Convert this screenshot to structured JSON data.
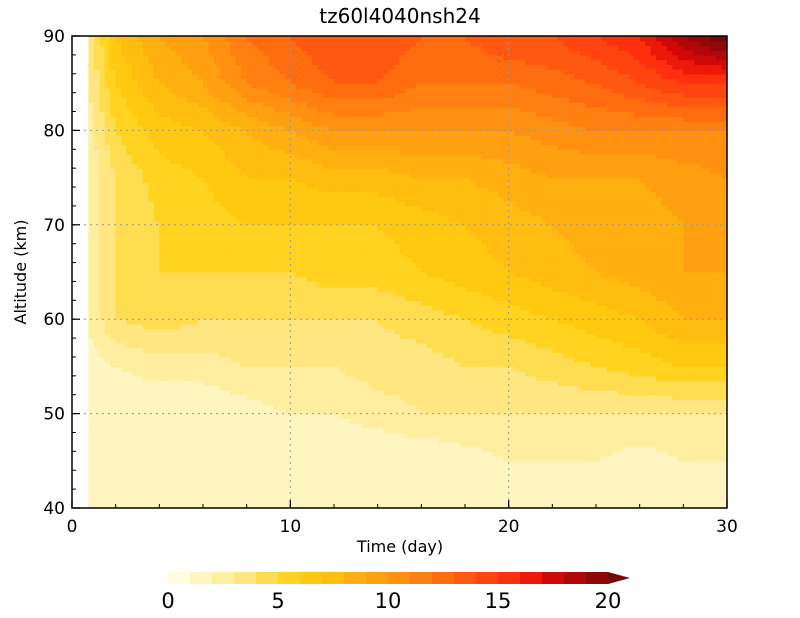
{
  "chart_data": {
    "type": "heatmap",
    "title": "tz60l4040nsh24",
    "xlabel": "Time (day)",
    "ylabel": "Altitude (km)",
    "xlim": [
      0,
      30
    ],
    "ylim": [
      40,
      90
    ],
    "x_ticks": [
      "0",
      "10",
      "20",
      "30"
    ],
    "y_ticks": [
      "40",
      "50",
      "60",
      "70",
      "80",
      "90"
    ],
    "grid": true,
    "no_data_before_day": 0.8,
    "x": [
      0,
      2,
      4,
      6,
      8,
      10,
      12,
      14,
      16,
      18,
      20,
      22,
      24,
      26,
      28,
      30
    ],
    "y": [
      40,
      45,
      50,
      55,
      60,
      65,
      70,
      75,
      80,
      85,
      90
    ],
    "z": [
      [
        1,
        1,
        1,
        1,
        1,
        1,
        1,
        1,
        1,
        1,
        1,
        1,
        1,
        1,
        1,
        1
      ],
      [
        1,
        1,
        1,
        1,
        1,
        1,
        1,
        1,
        1,
        1.5,
        2,
        2,
        2,
        1.5,
        2,
        2
      ],
      [
        1,
        1,
        1,
        1,
        1.5,
        2,
        2,
        2.5,
        3,
        3,
        3,
        3,
        3,
        3,
        3,
        3
      ],
      [
        1,
        2,
        2.5,
        2.5,
        3,
        3,
        3,
        3.5,
        3.5,
        4,
        4,
        4.5,
        5,
        5.5,
        6,
        6
      ],
      [
        1,
        4,
        4.5,
        4,
        4,
        4,
        4,
        4,
        4.5,
        5,
        5.5,
        6,
        6.5,
        7,
        8,
        8
      ],
      [
        1,
        4,
        5,
        5,
        5,
        5,
        5.5,
        5.5,
        6,
        6.5,
        7,
        7.5,
        8,
        8.5,
        9,
        9
      ],
      [
        1,
        4,
        5,
        5.5,
        6,
        6,
        6,
        6,
        6.5,
        7,
        7.5,
        8,
        8.5,
        8.5,
        9,
        9
      ],
      [
        1,
        4,
        5.5,
        6,
        7,
        7,
        7.5,
        7.5,
        8,
        8,
        8.5,
        9,
        9,
        9,
        9.5,
        10
      ],
      [
        1,
        5,
        6.5,
        7,
        8,
        9,
        10,
        10,
        10,
        10,
        10,
        10.5,
        11,
        11,
        11,
        11
      ],
      [
        1,
        6,
        8,
        9,
        11,
        12,
        13,
        13,
        12,
        12,
        12,
        12.5,
        13,
        14,
        15,
        15
      ],
      [
        1,
        7,
        9,
        10,
        12,
        13,
        14,
        14,
        13,
        13,
        14,
        14,
        15,
        16,
        19,
        21
      ]
    ],
    "colorbar": {
      "ticks": [
        "0",
        "5",
        "10",
        "15",
        "20"
      ],
      "tick_values": [
        0,
        5,
        10,
        15,
        20
      ],
      "min": 0,
      "max": 21,
      "step": 1,
      "extend": "max",
      "colors": [
        "#fffce0",
        "#fff5c0",
        "#ffeea0",
        "#ffe680",
        "#ffdd50",
        "#ffd320",
        "#ffc910",
        "#ffbd10",
        "#ffb010",
        "#ffa010",
        "#ff9010",
        "#ff8010",
        "#ff6c10",
        "#ff5810",
        "#ff4410",
        "#ff3010",
        "#ee1808",
        "#d00808",
        "#b00808",
        "#900808",
        "#740808"
      ]
    }
  }
}
